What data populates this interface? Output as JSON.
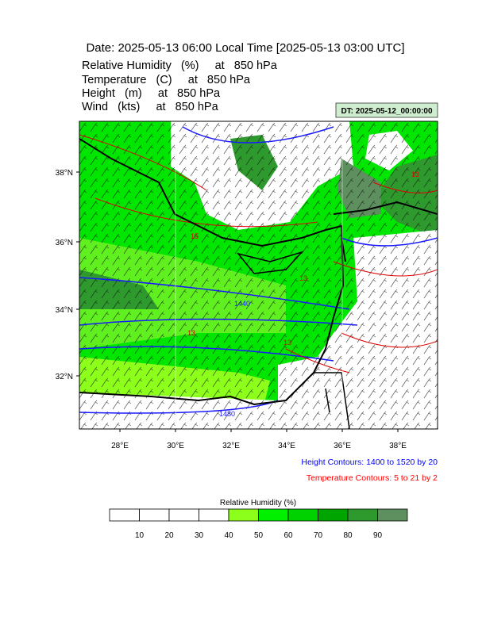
{
  "header": {
    "title": "Date: 2025-05-13  06:00 Local Time [2025-05-13  03:00 UTC]",
    "lines": [
      "Relative Humidity   (%)     at   850 hPa",
      "Temperature   (C)     at   850 hPa",
      "Height   (m)     at   850 hPa",
      "Wind   (kts)     at   850 hPa"
    ],
    "dt": "DT: 2025-05-12_00:00:00"
  },
  "map": {
    "lat_labels": [
      "38°N",
      "36°N",
      "34°N",
      "32°N"
    ],
    "lon_labels": [
      "28°E",
      "30°E",
      "32°E",
      "34°E",
      "36°E",
      "38°E"
    ],
    "contour_labels": [
      "1440",
      "1480",
      "15",
      "13",
      "13",
      "13",
      "13"
    ]
  },
  "captions": {
    "height": "Height Contours: 1400 to 1520 by 20",
    "temperature": "Temperature Contours: 5 to 21 by 2"
  },
  "colorbar": {
    "title": "Relative Humidity  (%)",
    "levels": [
      10,
      20,
      30,
      40,
      50,
      60,
      70,
      80,
      90
    ],
    "colors": [
      "#ffffff",
      "#ffffff",
      "#ffffff",
      "#ffffff",
      "#8cff1a",
      "#00f000",
      "#00d200",
      "#00a500",
      "#2e9a2e",
      "#5e8f5e"
    ]
  }
}
